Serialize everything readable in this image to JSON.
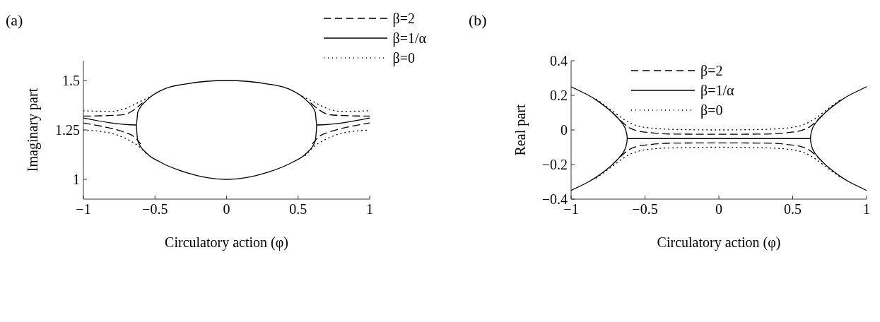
{
  "chart_data": [
    {
      "type": "line",
      "title": "(a)",
      "xlabel": "Circulatory action (φ)",
      "ylabel": "Imaginary part",
      "xlim": [
        -1,
        1
      ],
      "xticks": [
        -1,
        -0.5,
        0,
        0.5,
        1
      ],
      "ylim": [
        0.9,
        1.6
      ],
      "yticks": [
        1,
        1.25,
        1.5
      ],
      "legend": "top right",
      "series": [
        {
          "name": "β=2",
          "color": "#000000",
          "line_style": "dashed",
          "x": [
            -1,
            -0.85,
            -0.72,
            -0.65,
            -0.59
          ],
          "values": [
            1.32,
            1.322,
            1.327,
            1.35,
            1.386
          ]
        },
        {
          "name": "β=1/α",
          "color": "#000000",
          "line_style": "solid",
          "x": [
            -1,
            -0.63,
            -0.62,
            -0.55,
            -0.47,
            -0.29,
            0,
            0.29,
            0.47,
            0.55,
            0.62,
            0.63,
            1
          ],
          "values": [
            1.31,
            1.275,
            1.34,
            1.405,
            1.445,
            1.482,
            1.5,
            1.482,
            1.445,
            1.405,
            1.34,
            1.275,
            1.31
          ]
        },
        {
          "name": "β=0",
          "color": "#000000",
          "line_style": "dotted",
          "x": [
            -1,
            -0.8,
            -0.7,
            -0.6,
            -0.53
          ],
          "values": [
            1.347,
            1.344,
            1.36,
            1.395,
            1.42
          ]
        },
        {
          "color": "#000000",
          "line_style": "dashed",
          "x": [
            0.59,
            0.65,
            0.72,
            0.85,
            1
          ],
          "values": [
            1.386,
            1.35,
            1.327,
            1.322,
            1.32
          ]
        },
        {
          "color": "#000000",
          "line_style": "dashed",
          "x": [
            -1,
            -0.85,
            -0.72,
            -0.65,
            -0.6
          ],
          "values": [
            1.285,
            1.265,
            1.24,
            1.218,
            1.18
          ]
        },
        {
          "color": "#000000",
          "line_style": "dashed",
          "x": [
            0.6,
            0.65,
            0.72,
            0.85,
            1
          ],
          "values": [
            1.18,
            1.218,
            1.24,
            1.265,
            1.285
          ]
        },
        {
          "color": "#000000",
          "line_style": "solid",
          "x": [
            -0.63,
            -0.62,
            -0.55,
            -0.47,
            -0.29,
            0,
            0.29,
            0.47,
            0.55,
            0.62,
            0.63
          ],
          "values": [
            1.275,
            1.195,
            1.127,
            1.09,
            1.036,
            1.0,
            1.036,
            1.09,
            1.127,
            1.195,
            1.275
          ]
        },
        {
          "color": "#000000",
          "line_style": "dotted",
          "x": [
            0.53,
            0.6,
            0.7,
            0.8,
            1
          ],
          "values": [
            1.42,
            1.395,
            1.36,
            1.344,
            1.347
          ]
        },
        {
          "color": "#000000",
          "line_style": "dotted",
          "x": [
            -1,
            -0.8,
            -0.7,
            -0.6,
            -0.55
          ],
          "values": [
            1.25,
            1.232,
            1.205,
            1.159,
            1.12
          ]
        },
        {
          "color": "#000000",
          "line_style": "dotted",
          "x": [
            0.55,
            0.6,
            0.7,
            0.8,
            1
          ],
          "values": [
            1.12,
            1.159,
            1.205,
            1.232,
            1.25
          ]
        }
      ]
    },
    {
      "type": "line",
      "title": "(b)",
      "xlabel": "Circulatory action (φ)",
      "ylabel": "Real part",
      "xlim": [
        -1,
        1
      ],
      "xticks": [
        -1,
        -0.5,
        0,
        0.5,
        1
      ],
      "ylim": [
        -0.4,
        0.4
      ],
      "yticks": [
        -0.4,
        -0.2,
        0,
        0.2,
        0.4
      ],
      "legend": "top",
      "series": [
        {
          "name": "β=2",
          "color": "#000000",
          "line_style": "dashed",
          "x": [
            -0.72,
            -0.66,
            -0.61,
            -0.55,
            -0.45,
            -0.3,
            0,
            0.3,
            0.45,
            0.55,
            0.61,
            0.66,
            0.72
          ],
          "values": [
            0.1,
            0.05,
            0.015,
            -0.005,
            -0.017,
            -0.024,
            -0.025,
            -0.024,
            -0.017,
            -0.005,
            0.015,
            0.05,
            0.1
          ]
        },
        {
          "name": "β=1/α",
          "color": "#000000",
          "line_style": "solid",
          "x": [
            -1,
            -0.9,
            -0.83,
            -0.72,
            -0.65,
            -0.63,
            -0.62,
            -0.63,
            -0.65,
            -0.72,
            -0.83,
            -0.9,
            -1
          ],
          "values": [
            0.25,
            0.208,
            0.173,
            0.1,
            0.034,
            -0.001,
            -0.05,
            -0.099,
            -0.134,
            -0.2,
            -0.273,
            -0.308,
            -0.35
          ]
        },
        {
          "name": "β=0",
          "color": "#000000",
          "line_style": "dotted",
          "x": [
            -0.83,
            -0.72,
            -0.65,
            -0.6,
            -0.5,
            -0.3,
            0,
            0.3,
            0.5,
            0.6,
            0.65,
            0.72,
            0.83
          ],
          "values": [
            0.178,
            0.11,
            0.065,
            0.04,
            0.015,
            0.003,
            0,
            0.003,
            0.015,
            0.04,
            0.065,
            0.11,
            0.178
          ]
        },
        {
          "color": "#000000",
          "line_style": "dashed",
          "x": [
            -0.72,
            -0.66,
            -0.61,
            -0.55,
            -0.45,
            -0.3,
            0,
            0.3,
            0.45,
            0.55,
            0.61,
            0.66,
            0.72
          ],
          "values": [
            -0.2,
            -0.15,
            -0.115,
            -0.095,
            -0.083,
            -0.076,
            -0.075,
            -0.076,
            -0.083,
            -0.095,
            -0.115,
            -0.15,
            -0.2
          ]
        },
        {
          "color": "#000000",
          "line_style": "solid",
          "x": [
            -0.62,
            0.62
          ],
          "values": [
            -0.05,
            -0.05
          ]
        },
        {
          "color": "#000000",
          "line_style": "solid",
          "x": [
            1,
            0.9,
            0.83,
            0.72,
            0.65,
            0.63,
            0.62,
            0.63,
            0.65,
            0.72,
            0.83,
            0.9,
            1
          ],
          "values": [
            0.25,
            0.208,
            0.173,
            0.1,
            0.034,
            -0.001,
            -0.05,
            -0.099,
            -0.134,
            -0.2,
            -0.273,
            -0.308,
            -0.35
          ]
        },
        {
          "color": "#000000",
          "line_style": "dotted",
          "x": [
            -0.83,
            -0.72,
            -0.65,
            -0.6,
            -0.5,
            -0.3,
            0,
            0.3,
            0.5,
            0.6,
            0.65,
            0.72,
            0.83
          ],
          "values": [
            -0.278,
            -0.21,
            -0.165,
            -0.14,
            -0.115,
            -0.103,
            -0.1,
            -0.103,
            -0.115,
            -0.14,
            -0.165,
            -0.21,
            -0.278
          ]
        }
      ]
    }
  ]
}
